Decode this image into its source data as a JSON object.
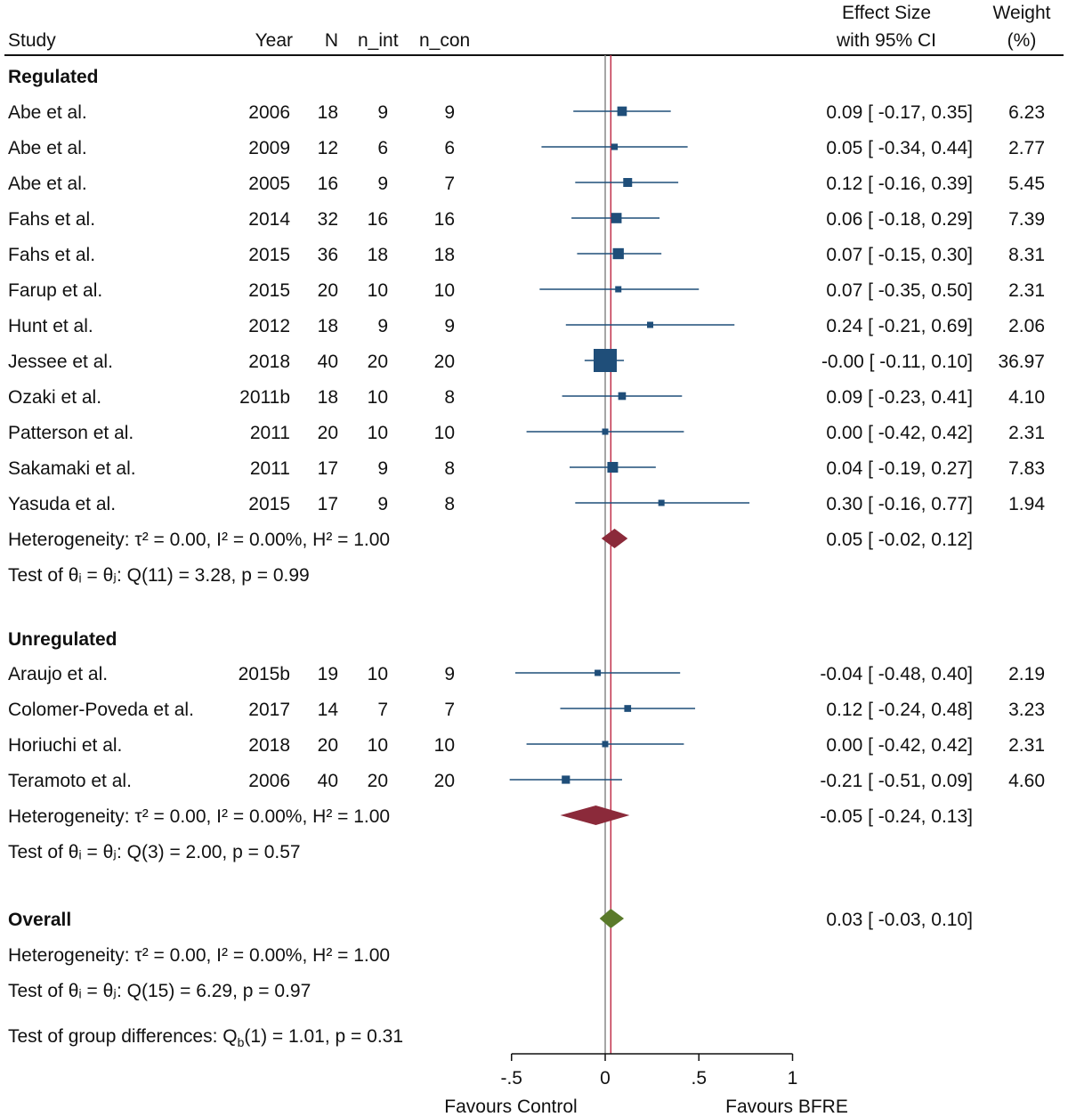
{
  "chart_data": {
    "type": "forest",
    "headers": {
      "study": "Study",
      "year": "Year",
      "n": "N",
      "n_int": "n_int",
      "n_con": "n_con",
      "es_line1": "Effect Size",
      "es_line2": "with 95% CI",
      "w_line1": "Weight",
      "w_line2": "(%)"
    },
    "xlim": [
      -0.5,
      1
    ],
    "xticks": [
      -0.5,
      0,
      0.5,
      1
    ],
    "xtick_labels": [
      "-.5",
      "0",
      ".5",
      "1"
    ],
    "xlabel_left": "Favours Control",
    "xlabel_right": "Favours BFRE",
    "null_line": 0,
    "overall_line": 0.03,
    "colors": {
      "marker": "#1f4e79",
      "subgroup_diamond": "#8b2a3a",
      "overall_diamond": "#5a7a2a",
      "overall_line": "#c0304a",
      "null_line": "#888888"
    },
    "groups": [
      {
        "name": "Regulated",
        "studies": [
          {
            "study": "Abe et al.",
            "year": "2006",
            "n": "18",
            "n_int": "9",
            "n_con": "9",
            "es": 0.09,
            "lo": -0.17,
            "hi": 0.35,
            "es_text": "0.09 [ -0.17,  0.35]",
            "weight": "6.23"
          },
          {
            "study": "Abe et al.",
            "year": "2009",
            "n": "12",
            "n_int": "6",
            "n_con": "6",
            "es": 0.05,
            "lo": -0.34,
            "hi": 0.44,
            "es_text": "0.05 [ -0.34,  0.44]",
            "weight": "2.77"
          },
          {
            "study": "Abe et al.",
            "year": "2005",
            "n": "16",
            "n_int": "9",
            "n_con": "7",
            "es": 0.12,
            "lo": -0.16,
            "hi": 0.39,
            "es_text": "0.12 [ -0.16,  0.39]",
            "weight": "5.45"
          },
          {
            "study": "Fahs et al.",
            "year": "2014",
            "n": "32",
            "n_int": "16",
            "n_con": "16",
            "es": 0.06,
            "lo": -0.18,
            "hi": 0.29,
            "es_text": "0.06 [ -0.18,  0.29]",
            "weight": "7.39"
          },
          {
            "study": "Fahs et al.",
            "year": "2015",
            "n": "36",
            "n_int": "18",
            "n_con": "18",
            "es": 0.07,
            "lo": -0.15,
            "hi": 0.3,
            "es_text": "0.07 [ -0.15,  0.30]",
            "weight": "8.31"
          },
          {
            "study": "Farup et al.",
            "year": "2015",
            "n": "20",
            "n_int": "10",
            "n_con": "10",
            "es": 0.07,
            "lo": -0.35,
            "hi": 0.5,
            "es_text": "0.07 [ -0.35,  0.50]",
            "weight": "2.31"
          },
          {
            "study": "Hunt et al.",
            "year": "2012",
            "n": "18",
            "n_int": "9",
            "n_con": "9",
            "es": 0.24,
            "lo": -0.21,
            "hi": 0.69,
            "es_text": "0.24 [ -0.21,  0.69]",
            "weight": "2.06"
          },
          {
            "study": "Jessee et al.",
            "year": "2018",
            "n": "40",
            "n_int": "20",
            "n_con": "20",
            "es": 0.0,
            "lo": -0.11,
            "hi": 0.1,
            "es_text": "-0.00 [ -0.11,  0.10]",
            "weight": "36.97"
          },
          {
            "study": "Ozaki et al.",
            "year": "2011b",
            "n": "18",
            "n_int": "10",
            "n_con": "8",
            "es": 0.09,
            "lo": -0.23,
            "hi": 0.41,
            "es_text": "0.09 [ -0.23,  0.41]",
            "weight": "4.10"
          },
          {
            "study": "Patterson et al.",
            "year": "2011",
            "n": "20",
            "n_int": "10",
            "n_con": "10",
            "es": 0.0,
            "lo": -0.42,
            "hi": 0.42,
            "es_text": "0.00 [ -0.42,  0.42]",
            "weight": "2.31"
          },
          {
            "study": "Sakamaki et al.",
            "year": "2011",
            "n": "17",
            "n_int": "9",
            "n_con": "8",
            "es": 0.04,
            "lo": -0.19,
            "hi": 0.27,
            "es_text": "0.04 [ -0.19,  0.27]",
            "weight": "7.83"
          },
          {
            "study": "Yasuda et al.",
            "year": "2015",
            "n": "17",
            "n_int": "9",
            "n_con": "8",
            "es": 0.3,
            "lo": -0.16,
            "hi": 0.77,
            "es_text": "0.30 [ -0.16,  0.77]",
            "weight": "1.94"
          }
        ],
        "pooled": {
          "es": 0.05,
          "lo": -0.02,
          "hi": 0.12,
          "es_text": "0.05 [ -0.02,  0.12]"
        },
        "heterogeneity": "Heterogeneity: τ² = 0.00, I² = 0.00%, H² = 1.00",
        "test": "Test of θᵢ = θⱼ: Q(11) = 3.28, p = 0.99"
      },
      {
        "name": "Unregulated",
        "studies": [
          {
            "study": "Araujo et al.",
            "year": "2015b",
            "n": "19",
            "n_int": "10",
            "n_con": "9",
            "es": -0.04,
            "lo": -0.48,
            "hi": 0.4,
            "es_text": "-0.04 [ -0.48,  0.40]",
            "weight": "2.19"
          },
          {
            "study": "Colomer-Poveda et al.",
            "year": "2017",
            "n": "14",
            "n_int": "7",
            "n_con": "7",
            "es": 0.12,
            "lo": -0.24,
            "hi": 0.48,
            "es_text": "0.12 [ -0.24,  0.48]",
            "weight": "3.23"
          },
          {
            "study": "Horiuchi et al.",
            "year": "2018",
            "n": "20",
            "n_int": "10",
            "n_con": "10",
            "es": 0.0,
            "lo": -0.42,
            "hi": 0.42,
            "es_text": "0.00 [ -0.42,  0.42]",
            "weight": "2.31"
          },
          {
            "study": "Teramoto et al.",
            "year": "2006",
            "n": "40",
            "n_int": "20",
            "n_con": "20",
            "es": -0.21,
            "lo": -0.51,
            "hi": 0.09,
            "es_text": "-0.21 [ -0.51,  0.09]",
            "weight": "4.60"
          }
        ],
        "pooled": {
          "es": -0.05,
          "lo": -0.24,
          "hi": 0.13,
          "es_text": "-0.05 [ -0.24,  0.13]"
        },
        "heterogeneity": "Heterogeneity: τ² = 0.00, I² = 0.00%, H² = 1.00",
        "test": "Test of θᵢ = θⱼ: Q(3) = 2.00, p = 0.57"
      }
    ],
    "overall": {
      "label": "Overall",
      "es": 0.03,
      "lo": -0.03,
      "hi": 0.1,
      "es_text": "0.03 [ -0.03,  0.10]",
      "heterogeneity": "Heterogeneity: τ² = 0.00, I² = 0.00%, H² = 1.00",
      "test": "Test of θᵢ = θⱼ: Q(15) = 6.29, p = 0.97",
      "group_test": {
        "pre": "Test of group differences: Q",
        "sub": "b",
        "post": "(1) = 1.01, p = 0.31"
      }
    }
  }
}
